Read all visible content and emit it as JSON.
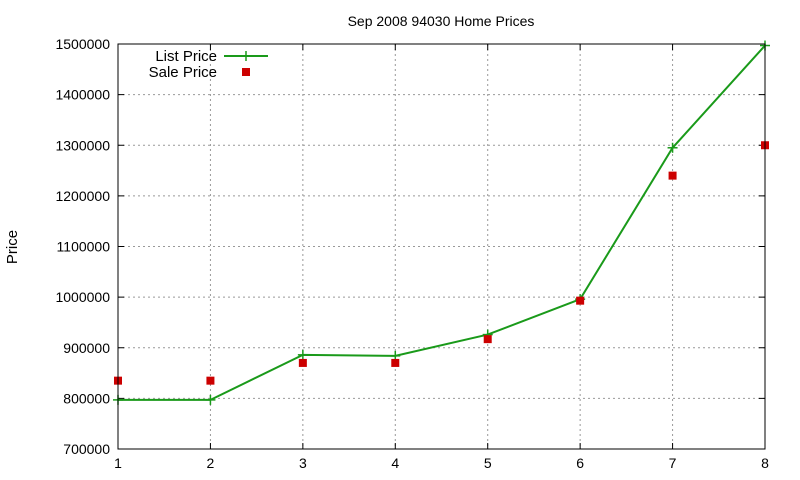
{
  "chart_data": {
    "type": "line",
    "title": "Sep 2008 94030 Home Prices",
    "xlabel": "",
    "ylabel": "Price",
    "x": [
      1,
      2,
      3,
      4,
      5,
      6,
      7,
      8
    ],
    "xlim": [
      1,
      8
    ],
    "ylim": [
      700000,
      1500000
    ],
    "yticks": [
      700000,
      800000,
      900000,
      1000000,
      1100000,
      1200000,
      1300000,
      1400000,
      1500000
    ],
    "xticks": [
      1,
      2,
      3,
      4,
      5,
      6,
      7,
      8
    ],
    "grid": true,
    "legend_position": "top-left",
    "series": [
      {
        "name": "List Price",
        "style": "linespoints",
        "marker": "plus",
        "color": "#1a9a1a",
        "values": [
          797000,
          797000,
          886000,
          884000,
          926000,
          996000,
          1295000,
          1497000
        ]
      },
      {
        "name": "Sale Price",
        "style": "points",
        "marker": "square",
        "color": "#cc0000",
        "values": [
          835000,
          835000,
          870000,
          870000,
          917000,
          993000,
          1240000,
          1300000
        ]
      }
    ]
  }
}
